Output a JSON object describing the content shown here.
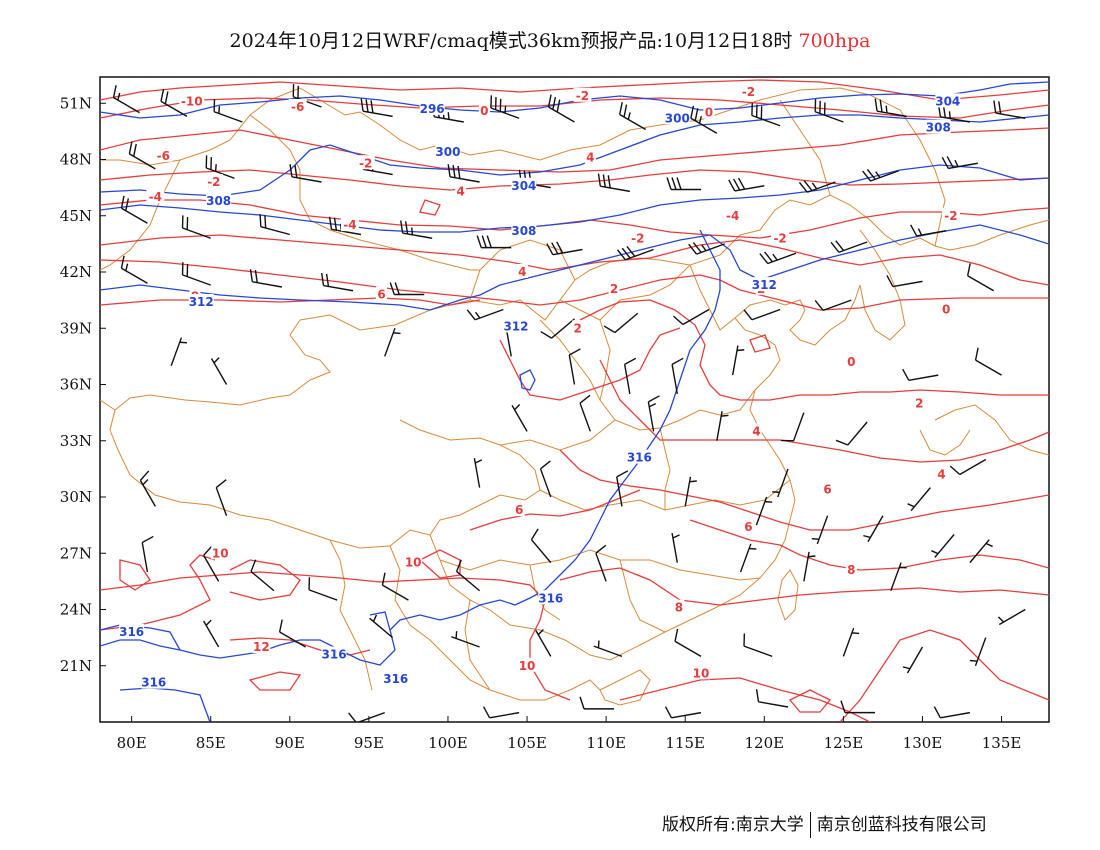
{
  "title": {
    "main": "2024年10月12日WRF/cmaq模式36km预报产品:10月12日18时",
    "level": "700hpa"
  },
  "footer": {
    "left": "版权所有:南京大学",
    "right": "南京创蓝科技有限公司"
  },
  "axes": {
    "lon_ticks": [
      "80E",
      "85E",
      "90E",
      "95E",
      "100E",
      "105E",
      "110E",
      "115E",
      "120E",
      "125E",
      "130E",
      "135E"
    ],
    "lat_ticks": [
      "51N",
      "48N",
      "45N",
      "42N",
      "39N",
      "36N",
      "33N",
      "30N",
      "27N",
      "24N",
      "21N"
    ]
  },
  "colors": {
    "temperature": "#e83c3c",
    "height": "#2646d8",
    "border": "#d98a3a",
    "barb": "#111111"
  },
  "temp_labels": [
    {
      "t": "-10",
      "lon": 83.8,
      "lat": 51.1
    },
    {
      "t": "-6",
      "lon": 90.5,
      "lat": 50.8
    },
    {
      "t": "-2",
      "lon": 108.5,
      "lat": 51.4
    },
    {
      "t": "-2",
      "lon": 119.0,
      "lat": 51.6
    },
    {
      "t": "-6",
      "lon": 82.0,
      "lat": 48.2
    },
    {
      "t": "-2",
      "lon": 94.8,
      "lat": 47.8
    },
    {
      "t": "-4",
      "lon": 81.5,
      "lat": 46.0
    },
    {
      "t": "-2",
      "lon": 85.2,
      "lat": 46.8
    },
    {
      "t": "-4",
      "lon": 93.8,
      "lat": 44.5
    },
    {
      "t": "-4",
      "lon": 118.0,
      "lat": 45.0
    },
    {
      "t": "-2",
      "lon": 112.0,
      "lat": 43.8
    },
    {
      "t": "-2",
      "lon": 121.0,
      "lat": 43.8
    },
    {
      "t": "-2",
      "lon": 131.8,
      "lat": 45.0
    },
    {
      "t": "0",
      "lon": 102.3,
      "lat": 50.6
    },
    {
      "t": "0",
      "lon": 116.5,
      "lat": 50.5
    },
    {
      "t": "0",
      "lon": 131.5,
      "lat": 40.0
    },
    {
      "t": "0",
      "lon": 125.5,
      "lat": 37.2
    },
    {
      "t": "2",
      "lon": 110.5,
      "lat": 41.1
    },
    {
      "t": "2",
      "lon": 108.2,
      "lat": 39.0
    },
    {
      "t": "2",
      "lon": 119.8,
      "lat": 41.1
    },
    {
      "t": "2",
      "lon": 129.8,
      "lat": 35.0
    },
    {
      "t": "4",
      "lon": 109.0,
      "lat": 48.1
    },
    {
      "t": "4",
      "lon": 100.8,
      "lat": 46.3
    },
    {
      "t": "4",
      "lon": 104.7,
      "lat": 42.0
    },
    {
      "t": "4",
      "lon": 119.5,
      "lat": 33.5
    },
    {
      "t": "4",
      "lon": 131.2,
      "lat": 31.2
    },
    {
      "t": "6",
      "lon": 95.8,
      "lat": 40.8
    },
    {
      "t": "6",
      "lon": 124.0,
      "lat": 30.4
    },
    {
      "t": "6",
      "lon": 119.0,
      "lat": 28.4
    },
    {
      "t": "6",
      "lon": 104.5,
      "lat": 29.3
    },
    {
      "t": "8",
      "lon": 84.0,
      "lat": 40.7
    },
    {
      "t": "8",
      "lon": 125.5,
      "lat": 26.1
    },
    {
      "t": "8",
      "lon": 114.6,
      "lat": 24.1
    },
    {
      "t": "10",
      "lon": 85.6,
      "lat": 27.0
    },
    {
      "t": "10",
      "lon": 97.8,
      "lat": 26.5
    },
    {
      "t": "10",
      "lon": 105.0,
      "lat": 21.0
    },
    {
      "t": "10",
      "lon": 116.0,
      "lat": 20.6
    },
    {
      "t": "12",
      "lon": 88.2,
      "lat": 22.0
    }
  ],
  "height_labels": [
    {
      "t": "296",
      "lon": 99.0,
      "lat": 50.7
    },
    {
      "t": "300",
      "lon": 114.5,
      "lat": 50.2
    },
    {
      "t": "304",
      "lon": 131.6,
      "lat": 51.1
    },
    {
      "t": "308",
      "lon": 131.0,
      "lat": 49.7
    },
    {
      "t": "300",
      "lon": 100.0,
      "lat": 48.4
    },
    {
      "t": "304",
      "lon": 104.8,
      "lat": 46.6
    },
    {
      "t": "308",
      "lon": 85.5,
      "lat": 45.8
    },
    {
      "t": "308",
      "lon": 104.8,
      "lat": 44.2
    },
    {
      "t": "312",
      "lon": 84.4,
      "lat": 40.4
    },
    {
      "t": "312",
      "lon": 104.3,
      "lat": 39.1
    },
    {
      "t": "312",
      "lon": 120.0,
      "lat": 41.3
    },
    {
      "t": "316",
      "lon": 112.1,
      "lat": 32.1
    },
    {
      "t": "316",
      "lon": 106.5,
      "lat": 24.6
    },
    {
      "t": "316",
      "lon": 80.0,
      "lat": 22.8
    },
    {
      "t": "316",
      "lon": 92.8,
      "lat": 21.6
    },
    {
      "t": "316",
      "lon": 96.7,
      "lat": 20.3
    },
    {
      "t": "316",
      "lon": 81.4,
      "lat": 20.1
    }
  ],
  "wind_barbs": [
    {
      "lon": 80.5,
      "lat": 50.5,
      "dir": 300,
      "spd": 15
    },
    {
      "lon": 83.5,
      "lat": 50.3,
      "dir": 300,
      "spd": 20
    },
    {
      "lon": 87.0,
      "lat": 50.0,
      "dir": 290,
      "spd": 15
    },
    {
      "lon": 92.0,
      "lat": 50.8,
      "dir": 290,
      "spd": 20
    },
    {
      "lon": 96.5,
      "lat": 50.3,
      "dir": 280,
      "spd": 30
    },
    {
      "lon": 101.0,
      "lat": 50.0,
      "dir": 280,
      "spd": 35
    },
    {
      "lon": 104.5,
      "lat": 50.2,
      "dir": 290,
      "spd": 35
    },
    {
      "lon": 108.0,
      "lat": 50.0,
      "dir": 300,
      "spd": 30
    },
    {
      "lon": 112.5,
      "lat": 49.6,
      "dir": 300,
      "spd": 25
    },
    {
      "lon": 117.0,
      "lat": 49.4,
      "dir": 300,
      "spd": 25
    },
    {
      "lon": 121.0,
      "lat": 49.8,
      "dir": 290,
      "spd": 30
    },
    {
      "lon": 125.0,
      "lat": 50.0,
      "dir": 290,
      "spd": 30
    },
    {
      "lon": 129.0,
      "lat": 50.3,
      "dir": 280,
      "spd": 25
    },
    {
      "lon": 133.0,
      "lat": 50.0,
      "dir": 280,
      "spd": 25
    },
    {
      "lon": 136.5,
      "lat": 50.2,
      "dir": 280,
      "spd": 20
    },
    {
      "lon": 81.5,
      "lat": 47.5,
      "dir": 300,
      "spd": 20
    },
    {
      "lon": 86.5,
      "lat": 47.0,
      "dir": 290,
      "spd": 25
    },
    {
      "lon": 92.0,
      "lat": 46.8,
      "dir": 280,
      "spd": 20
    },
    {
      "lon": 96.5,
      "lat": 47.2,
      "dir": 280,
      "spd": 25
    },
    {
      "lon": 102.0,
      "lat": 46.8,
      "dir": 280,
      "spd": 30
    },
    {
      "lon": 106.5,
      "lat": 46.5,
      "dir": 280,
      "spd": 35
    },
    {
      "lon": 111.5,
      "lat": 46.3,
      "dir": 280,
      "spd": 30
    },
    {
      "lon": 116.0,
      "lat": 46.4,
      "dir": 270,
      "spd": 30
    },
    {
      "lon": 120.0,
      "lat": 46.6,
      "dir": 260,
      "spd": 30
    },
    {
      "lon": 124.5,
      "lat": 46.8,
      "dir": 250,
      "spd": 25
    },
    {
      "lon": 128.5,
      "lat": 47.4,
      "dir": 250,
      "spd": 25
    },
    {
      "lon": 133.5,
      "lat": 47.8,
      "dir": 260,
      "spd": 25
    },
    {
      "lon": 81.0,
      "lat": 44.6,
      "dir": 300,
      "spd": 20
    },
    {
      "lon": 85.0,
      "lat": 43.8,
      "dir": 290,
      "spd": 20
    },
    {
      "lon": 90.0,
      "lat": 44.0,
      "dir": 285,
      "spd": 20
    },
    {
      "lon": 94.5,
      "lat": 44.0,
      "dir": 280,
      "spd": 25
    },
    {
      "lon": 99.0,
      "lat": 43.8,
      "dir": 280,
      "spd": 25
    },
    {
      "lon": 104.0,
      "lat": 43.3,
      "dir": 270,
      "spd": 30
    },
    {
      "lon": 108.5,
      "lat": 43.2,
      "dir": 260,
      "spd": 30
    },
    {
      "lon": 113.0,
      "lat": 43.2,
      "dir": 250,
      "spd": 30
    },
    {
      "lon": 117.5,
      "lat": 43.5,
      "dir": 250,
      "spd": 25
    },
    {
      "lon": 122.0,
      "lat": 43.0,
      "dir": 250,
      "spd": 25
    },
    {
      "lon": 126.5,
      "lat": 43.6,
      "dir": 250,
      "spd": 20
    },
    {
      "lon": 131.5,
      "lat": 44.2,
      "dir": 260,
      "spd": 15
    },
    {
      "lon": 81.0,
      "lat": 41.4,
      "dir": 300,
      "spd": 15
    },
    {
      "lon": 85.0,
      "lat": 41.3,
      "dir": 290,
      "spd": 20
    },
    {
      "lon": 89.5,
      "lat": 41.2,
      "dir": 280,
      "spd": 20
    },
    {
      "lon": 94.0,
      "lat": 41.0,
      "dir": 280,
      "spd": 20
    },
    {
      "lon": 98.5,
      "lat": 40.8,
      "dir": 270,
      "spd": 20
    },
    {
      "lon": 103.5,
      "lat": 40.0,
      "dir": 250,
      "spd": 15
    },
    {
      "lon": 108.0,
      "lat": 39.5,
      "dir": 230,
      "spd": 10
    },
    {
      "lon": 112.0,
      "lat": 39.8,
      "dir": 230,
      "spd": 10
    },
    {
      "lon": 116.5,
      "lat": 40.0,
      "dir": 240,
      "spd": 10
    },
    {
      "lon": 121.0,
      "lat": 40.0,
      "dir": 250,
      "spd": 10
    },
    {
      "lon": 125.5,
      "lat": 40.5,
      "dir": 250,
      "spd": 10
    },
    {
      "lon": 130.0,
      "lat": 41.5,
      "dir": 260,
      "spd": 10
    },
    {
      "lon": 134.5,
      "lat": 41.0,
      "dir": 300,
      "spd": 10
    },
    {
      "lon": 82.5,
      "lat": 37.0,
      "dir": 20,
      "spd": 5
    },
    {
      "lon": 86.0,
      "lat": 36.0,
      "dir": 330,
      "spd": 5
    },
    {
      "lon": 96.0,
      "lat": 37.5,
      "dir": 20,
      "spd": 5
    },
    {
      "lon": 104.0,
      "lat": 37.5,
      "dir": 350,
      "spd": 5
    },
    {
      "lon": 108.0,
      "lat": 36.0,
      "dir": 350,
      "spd": 10
    },
    {
      "lon": 111.5,
      "lat": 35.5,
      "dir": 350,
      "spd": 10
    },
    {
      "lon": 114.5,
      "lat": 35.5,
      "dir": 350,
      "spd": 10
    },
    {
      "lon": 118.0,
      "lat": 36.5,
      "dir": 10,
      "spd": 5
    },
    {
      "lon": 122.5,
      "lat": 34.5,
      "dir": 200,
      "spd": 10
    },
    {
      "lon": 126.5,
      "lat": 34.0,
      "dir": 220,
      "spd": 10
    },
    {
      "lon": 131.0,
      "lat": 36.5,
      "dir": 260,
      "spd": 10
    },
    {
      "lon": 135.0,
      "lat": 36.5,
      "dir": 300,
      "spd": 10
    },
    {
      "lon": 105.0,
      "lat": 33.5,
      "dir": 330,
      "spd": 5
    },
    {
      "lon": 109.0,
      "lat": 33.5,
      "dir": 340,
      "spd": 10
    },
    {
      "lon": 113.0,
      "lat": 33.5,
      "dir": 350,
      "spd": 15
    },
    {
      "lon": 117.0,
      "lat": 33.0,
      "dir": 10,
      "spd": 5
    },
    {
      "lon": 121.5,
      "lat": 31.5,
      "dir": 200,
      "spd": 5
    },
    {
      "lon": 130.5,
      "lat": 30.5,
      "dir": 220,
      "spd": 5
    },
    {
      "lon": 134.0,
      "lat": 32.0,
      "dir": 240,
      "spd": 10
    },
    {
      "lon": 81.5,
      "lat": 29.5,
      "dir": 330,
      "spd": 15
    },
    {
      "lon": 86.0,
      "lat": 29.0,
      "dir": 340,
      "spd": 10
    },
    {
      "lon": 102.0,
      "lat": 30.5,
      "dir": 350,
      "spd": 5
    },
    {
      "lon": 106.5,
      "lat": 30.0,
      "dir": 340,
      "spd": 10
    },
    {
      "lon": 111.0,
      "lat": 29.5,
      "dir": 350,
      "spd": 10
    },
    {
      "lon": 115.0,
      "lat": 29.5,
      "dir": 10,
      "spd": 5
    },
    {
      "lon": 119.5,
      "lat": 28.5,
      "dir": 20,
      "spd": 5
    },
    {
      "lon": 124.0,
      "lat": 29.0,
      "dir": 200,
      "spd": 5
    },
    {
      "lon": 127.5,
      "lat": 29.0,
      "dir": 210,
      "spd": 5
    },
    {
      "lon": 132.0,
      "lat": 28.0,
      "dir": 220,
      "spd": 5
    },
    {
      "lon": 81.0,
      "lat": 26.0,
      "dir": 350,
      "spd": 10
    },
    {
      "lon": 85.5,
      "lat": 25.5,
      "dir": 330,
      "spd": 10
    },
    {
      "lon": 89.0,
      "lat": 25.0,
      "dir": 310,
      "spd": 10
    },
    {
      "lon": 93.0,
      "lat": 24.5,
      "dir": 290,
      "spd": 10
    },
    {
      "lon": 97.5,
      "lat": 24.5,
      "dir": 300,
      "spd": 10
    },
    {
      "lon": 102.0,
      "lat": 25.0,
      "dir": 310,
      "spd": 10
    },
    {
      "lon": 106.5,
      "lat": 26.5,
      "dir": 320,
      "spd": 10
    },
    {
      "lon": 110.0,
      "lat": 25.5,
      "dir": 340,
      "spd": 10
    },
    {
      "lon": 114.5,
      "lat": 26.5,
      "dir": 350,
      "spd": 5
    },
    {
      "lon": 118.5,
      "lat": 26.0,
      "dir": 20,
      "spd": 5
    },
    {
      "lon": 122.5,
      "lat": 25.5,
      "dir": 10,
      "spd": 5
    },
    {
      "lon": 128.0,
      "lat": 25.0,
      "dir": 20,
      "spd": 5
    },
    {
      "lon": 133.0,
      "lat": 26.5,
      "dir": 40,
      "spd": 5
    },
    {
      "lon": 136.5,
      "lat": 24.0,
      "dir": 240,
      "spd": 5
    },
    {
      "lon": 85.5,
      "lat": 22.0,
      "dir": 330,
      "spd": 5
    },
    {
      "lon": 91.0,
      "lat": 22.0,
      "dir": 300,
      "spd": 10
    },
    {
      "lon": 96.5,
      "lat": 22.5,
      "dir": 310,
      "spd": 5
    },
    {
      "lon": 102.0,
      "lat": 22.0,
      "dir": 290,
      "spd": 5
    },
    {
      "lon": 106.5,
      "lat": 21.5,
      "dir": 330,
      "spd": 5
    },
    {
      "lon": 111.0,
      "lat": 21.5,
      "dir": 290,
      "spd": 5
    },
    {
      "lon": 116.0,
      "lat": 21.5,
      "dir": 300,
      "spd": 10
    },
    {
      "lon": 120.5,
      "lat": 21.5,
      "dir": 290,
      "spd": 10
    },
    {
      "lon": 125.0,
      "lat": 21.5,
      "dir": 20,
      "spd": 5
    },
    {
      "lon": 130.0,
      "lat": 22.0,
      "dir": 210,
      "spd": 5
    },
    {
      "lon": 134.0,
      "lat": 22.5,
      "dir": 200,
      "spd": 5
    },
    {
      "lon": 96.0,
      "lat": 18.5,
      "dir": 250,
      "spd": 10
    },
    {
      "lon": 104.5,
      "lat": 18.5,
      "dir": 260,
      "spd": 10
    },
    {
      "lon": 110.5,
      "lat": 18.7,
      "dir": 270,
      "spd": 10
    },
    {
      "lon": 116.0,
      "lat": 18.5,
      "dir": 260,
      "spd": 10
    },
    {
      "lon": 121.5,
      "lat": 18.8,
      "dir": 280,
      "spd": 10
    },
    {
      "lon": 127.0,
      "lat": 18.5,
      "dir": 270,
      "spd": 10
    },
    {
      "lon": 133.0,
      "lat": 18.5,
      "dir": 260,
      "spd": 10
    }
  ]
}
